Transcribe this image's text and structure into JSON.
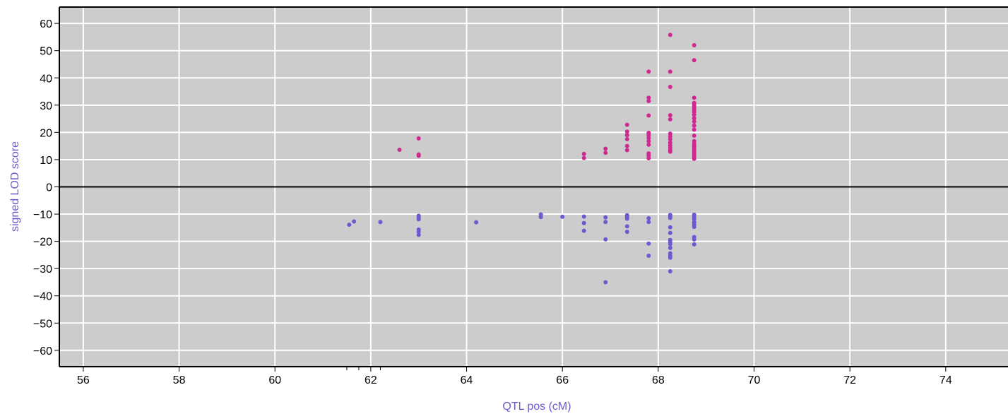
{
  "colors": {
    "background": "#cccccc",
    "grid": "#ffffff",
    "positive": "#cc2a8f",
    "negative": "#6a5acd",
    "axis_title": "#6a5acd",
    "zero_line": "#000000"
  },
  "chart_data": {
    "type": "scatter",
    "xlabel": "QTL pos (cM)",
    "ylabel": "signed LOD score",
    "xlim": [
      55.5,
      75.3
    ],
    "ylim": [
      -66,
      66
    ],
    "x_ticks": [
      56,
      58,
      60,
      62,
      64,
      66,
      68,
      70,
      72,
      74
    ],
    "y_ticks": [
      60,
      50,
      40,
      30,
      20,
      10,
      0,
      -10,
      -20,
      -30,
      -40,
      -50,
      -60
    ],
    "x_minor_ticks": [
      61.5,
      61.75,
      62.2
    ],
    "grid": true,
    "zero_line": true,
    "series": [
      {
        "color_key": "positive",
        "points": [
          [
            62.6,
            13.6
          ],
          [
            63.0,
            17.8
          ],
          [
            63.0,
            11.9
          ],
          [
            63.0,
            11.4
          ],
          [
            66.45,
            12.1
          ],
          [
            66.45,
            10.6
          ],
          [
            66.9,
            14.0
          ],
          [
            66.9,
            12.5
          ],
          [
            67.35,
            22.8
          ],
          [
            67.35,
            20.3
          ],
          [
            67.35,
            19.0
          ],
          [
            67.35,
            17.5
          ],
          [
            67.35,
            15.0
          ],
          [
            67.35,
            13.5
          ],
          [
            67.8,
            42.3
          ],
          [
            67.8,
            32.7
          ],
          [
            67.8,
            31.5
          ],
          [
            67.8,
            26.2
          ],
          [
            67.8,
            19.8
          ],
          [
            67.8,
            19.0
          ],
          [
            67.8,
            18.0
          ],
          [
            67.8,
            16.8
          ],
          [
            67.8,
            15.5
          ],
          [
            67.8,
            12.3
          ],
          [
            67.8,
            11.5
          ],
          [
            67.8,
            10.5
          ],
          [
            68.25,
            55.8
          ],
          [
            68.25,
            42.3
          ],
          [
            68.25,
            36.7
          ],
          [
            68.25,
            26.3
          ],
          [
            68.25,
            24.8
          ],
          [
            68.25,
            19.5
          ],
          [
            68.25,
            18.5
          ],
          [
            68.25,
            17.5
          ],
          [
            68.25,
            16.2
          ],
          [
            68.25,
            15.2
          ],
          [
            68.25,
            14.4
          ],
          [
            68.25,
            13.5
          ],
          [
            68.25,
            12.9
          ],
          [
            68.75,
            52.0
          ],
          [
            68.75,
            46.5
          ],
          [
            68.75,
            32.7
          ],
          [
            68.75,
            30.8
          ],
          [
            68.75,
            30.0
          ],
          [
            68.75,
            29.2
          ],
          [
            68.75,
            28.4
          ],
          [
            68.75,
            27.5
          ],
          [
            68.75,
            26.5
          ],
          [
            68.75,
            25.2
          ],
          [
            68.75,
            24.0
          ],
          [
            68.75,
            22.5
          ],
          [
            68.75,
            21.0
          ],
          [
            68.75,
            18.8
          ],
          [
            68.75,
            16.8
          ],
          [
            68.75,
            15.8
          ],
          [
            68.75,
            15.0
          ],
          [
            68.75,
            14.2
          ],
          [
            68.75,
            13.5
          ],
          [
            68.75,
            12.8
          ],
          [
            68.75,
            12.1
          ],
          [
            68.75,
            11.4
          ],
          [
            68.75,
            10.8
          ],
          [
            68.75,
            10.3
          ]
        ]
      },
      {
        "color_key": "negative",
        "points": [
          [
            61.55,
            -13.9
          ],
          [
            61.65,
            -12.7
          ],
          [
            62.2,
            -12.9
          ],
          [
            63.0,
            -10.6
          ],
          [
            63.0,
            -11.3
          ],
          [
            63.0,
            -11.9
          ],
          [
            63.0,
            -15.7
          ],
          [
            63.0,
            -16.5
          ],
          [
            63.0,
            -17.6
          ],
          [
            64.2,
            -13.0
          ],
          [
            65.55,
            -10.1
          ],
          [
            65.55,
            -11.1
          ],
          [
            66.0,
            -11.0
          ],
          [
            66.45,
            -10.9
          ],
          [
            66.45,
            -13.3
          ],
          [
            66.45,
            -16.1
          ],
          [
            66.9,
            -11.2
          ],
          [
            66.9,
            -12.9
          ],
          [
            66.9,
            -19.3
          ],
          [
            66.9,
            -35.0
          ],
          [
            67.35,
            -10.4
          ],
          [
            67.35,
            -11.0
          ],
          [
            67.35,
            -11.7
          ],
          [
            67.35,
            -14.5
          ],
          [
            67.35,
            -16.5
          ],
          [
            67.8,
            -11.5
          ],
          [
            67.8,
            -12.9
          ],
          [
            67.8,
            -20.8
          ],
          [
            67.8,
            -25.3
          ],
          [
            68.25,
            -10.3
          ],
          [
            68.25,
            -10.9
          ],
          [
            68.25,
            -11.4
          ],
          [
            68.25,
            -14.8
          ],
          [
            68.25,
            -16.9
          ],
          [
            68.25,
            -19.5
          ],
          [
            68.25,
            -20.3
          ],
          [
            68.25,
            -21.0
          ],
          [
            68.25,
            -22.4
          ],
          [
            68.25,
            -24.4
          ],
          [
            68.25,
            -25.3
          ],
          [
            68.25,
            -26.0
          ],
          [
            68.25,
            -31.0
          ],
          [
            68.75,
            -10.2
          ],
          [
            68.75,
            -11.0
          ],
          [
            68.75,
            -11.9
          ],
          [
            68.75,
            -13.0
          ],
          [
            68.75,
            -13.9
          ],
          [
            68.75,
            -14.7
          ],
          [
            68.75,
            -18.4
          ],
          [
            68.75,
            -19.3
          ],
          [
            68.75,
            -21.1
          ]
        ]
      }
    ]
  }
}
